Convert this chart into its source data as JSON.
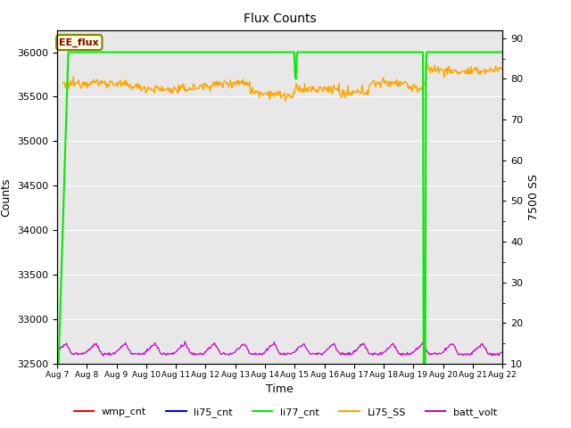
{
  "title": "Flux Counts",
  "xlabel": "Time",
  "ylabel_left": "Counts",
  "ylabel_right": "7500 SS",
  "annotation_text": "EE_flux",
  "left_ylim": [
    32500,
    36250
  ],
  "right_ylim": [
    10,
    92
  ],
  "right_yticks": [
    10,
    20,
    30,
    40,
    50,
    60,
    70,
    80,
    90
  ],
  "left_yticks": [
    32500,
    33000,
    33500,
    34000,
    34500,
    35000,
    35500,
    36000
  ],
  "xtick_labels": [
    "Aug 7",
    "Aug 8",
    "Aug 9",
    "Aug 10",
    "Aug 11",
    "Aug 12",
    "Aug 13",
    "Aug 14",
    "Aug 15",
    "Aug 16",
    "Aug 17",
    "Aug 18",
    "Aug 19",
    "Aug 20",
    "Aug 21",
    "Aug 22"
  ],
  "li77_cnt_color": "#00ee00",
  "Li75_SS_color": "#ffa500",
  "batt_volt_color": "#cc00cc",
  "wmp_cnt_color": "#ff0000",
  "li75_cnt_color": "#0000ff",
  "bg_color": "#e8e8e8",
  "grid_color": "#ffffff"
}
